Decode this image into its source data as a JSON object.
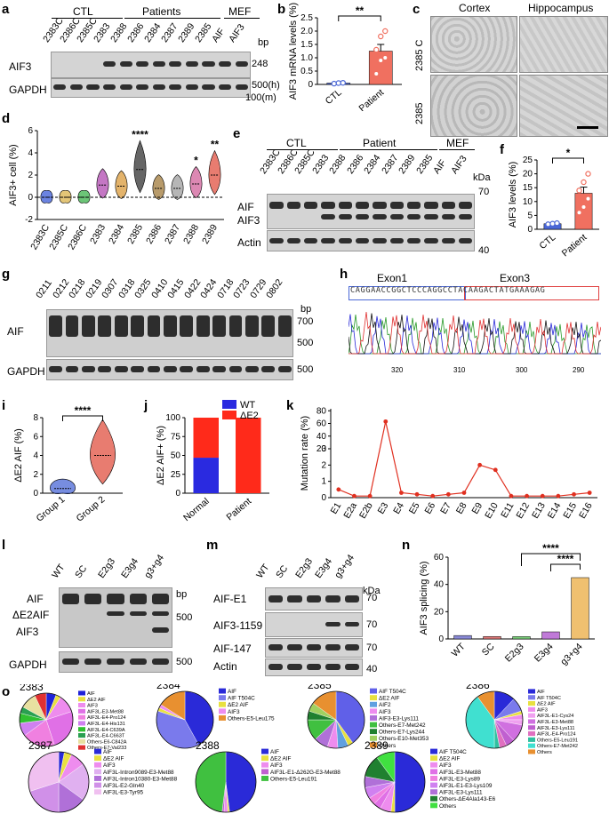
{
  "panels": {
    "a": "a",
    "b": "b",
    "c": "c",
    "d": "d",
    "e": "e",
    "f": "f",
    "g": "g",
    "h": "h",
    "i": "i",
    "j": "j",
    "k": "k",
    "l": "l",
    "m": "m",
    "n": "n",
    "o": "o"
  },
  "a": {
    "group_ctl": "CTL",
    "group_patients": "Patients",
    "group_mef": "MEF",
    "lanes": [
      "2383C",
      "2386C",
      "2385C",
      "2383",
      "2388",
      "2386",
      "2384",
      "2387",
      "2389",
      "2385",
      "AIF",
      "AIF3"
    ],
    "rows": [
      "AIF3",
      "GAPDH"
    ],
    "bp": "bp",
    "m248": "248",
    "m500": "500(h)",
    "m100": "100(m)"
  },
  "e": {
    "group_ctl": "CTL",
    "group_patient": "Patient",
    "group_mef": "MEF",
    "lanes": [
      "2383C",
      "2386C",
      "2385C",
      "2383",
      "2388",
      "2386",
      "2384",
      "2387",
      "2389",
      "2385",
      "AIF",
      "AIF3"
    ],
    "rows": [
      "AIF",
      "AIF3",
      "Actin"
    ],
    "kda": "kDa",
    "m70": "70",
    "m40": "40"
  },
  "c": {
    "cortex": "Cortex",
    "hippo": "Hippocampus",
    "row1": "2385 C",
    "row2": "2385"
  },
  "g": {
    "lanes": [
      "0211",
      "0212",
      "0218",
      "0219",
      "0307",
      "0318",
      "0325",
      "0410",
      "0415",
      "0422",
      "0424",
      "0718",
      "0723",
      "0729",
      "0802"
    ],
    "rows": [
      "AIF",
      "GAPDH"
    ],
    "bp": "bp",
    "m700": "700",
    "m500a": "500",
    "m500b": "500"
  },
  "h": {
    "exon1": "Exon1",
    "exon3": "Exon3",
    "seq": "CAGGAACCGGCTCCCAGGCCTACAAGACTATGAAAGAG",
    "ticks": [
      "320",
      "310",
      "300",
      "290"
    ]
  },
  "l": {
    "lanes": [
      "WT",
      "SC",
      "E2g3",
      "E3g4",
      "g3+g4"
    ],
    "rows": [
      "AIF",
      "ΔE2AIF",
      "AIF3",
      "GAPDH"
    ],
    "bp": "bp",
    "m500a": "500",
    "m500b": "500"
  },
  "m": {
    "lanes": [
      "WT",
      "SC",
      "E2g3",
      "E3g4",
      "g3+g4"
    ],
    "rows": [
      "AIF-E1",
      "AIF3-1159",
      "AIF-147",
      "Actin"
    ],
    "kda": "kDa",
    "m70a": "70",
    "m70b": "70",
    "m70c": "70",
    "m40": "40"
  },
  "chart_data": [
    {
      "panel": "b",
      "type": "bar",
      "ylabel": "AIF3 mRNA levels (%)",
      "categories": [
        "CTL",
        "Patient"
      ],
      "values": [
        0.05,
        1.25
      ],
      "sem": [
        0.02,
        0.25
      ],
      "colors": [
        "#4a67d6",
        "#f07060"
      ],
      "points": [
        [
          0.03,
          0.05,
          0.06
        ],
        [
          0.4,
          0.9,
          1.0,
          1.3,
          1.8,
          2.0
        ]
      ],
      "ylim": [
        0,
        2.5
      ],
      "yticks": [
        "0",
        "0.5",
        "1.0",
        "1.5",
        "2.0",
        "2.5"
      ],
      "sig": "**"
    },
    {
      "panel": "d",
      "type": "violin",
      "ylabel": "AIF3+ cell (%)",
      "categories": [
        "2383C",
        "2385C",
        "2386C",
        "2383",
        "2384",
        "2385",
        "2386",
        "2387",
        "2388",
        "2389"
      ],
      "medians": [
        0,
        0,
        0,
        1.1,
        1.0,
        2.5,
        0.8,
        0.8,
        1.2,
        2.0
      ],
      "colors": [
        "#3a5ad6",
        "#d9b24a",
        "#3bb24a",
        "#b04ab0",
        "#d99a3a",
        "#333333",
        "#a07a3a",
        "#9e9e9e",
        "#d0609a",
        "#e05040"
      ],
      "ylim": [
        -2,
        6
      ],
      "yticks": [
        "-2",
        "0",
        "2",
        "4",
        "6"
      ],
      "sig": {
        "2385": "****",
        "2388": "*",
        "2389": "**"
      }
    },
    {
      "panel": "f",
      "type": "bar",
      "ylabel": "AIF3 levels (%)",
      "categories": [
        "CTL",
        "Patient"
      ],
      "values": [
        2.0,
        13.0
      ],
      "sem": [
        0.3,
        2.2
      ],
      "colors": [
        "#4a67d6",
        "#f07060"
      ],
      "points": [
        [
          1.8,
          2.0,
          2.2
        ],
        [
          6,
          8,
          11,
          14,
          17,
          20
        ]
      ],
      "ylim": [
        0,
        25
      ],
      "yticks": [
        "0",
        "5",
        "10",
        "15",
        "20",
        "25"
      ],
      "sig": "*"
    },
    {
      "panel": "i",
      "type": "violin",
      "ylabel": "ΔE2 AIF (%)",
      "categories": [
        "Group 1",
        "Group 2"
      ],
      "medians": [
        0.5,
        4.0
      ],
      "colors": [
        "#4a67d6",
        "#e05040"
      ],
      "ylim": [
        0,
        8
      ],
      "yticks": [
        "0",
        "2",
        "4",
        "6",
        "8"
      ],
      "sig": "****"
    },
    {
      "panel": "j",
      "type": "stacked_bar",
      "ylabel": "ΔE2 AIF+ (%)",
      "categories": [
        "Normal",
        "Patient"
      ],
      "series": [
        {
          "name": "WT",
          "values": [
            47,
            0
          ],
          "color": "#2a2ae0"
        },
        {
          "name": "ΔE2",
          "values": [
            53,
            100
          ],
          "color": "#ff2a1a"
        }
      ],
      "ylim": [
        0,
        100
      ],
      "yticks": [
        "0",
        "25",
        "50",
        "75",
        "100"
      ]
    },
    {
      "panel": "k",
      "type": "line",
      "ylabel": "Mutation rate (%)",
      "categories": [
        "E1",
        "E2a",
        "E2b",
        "E3",
        "E4",
        "E5",
        "E6",
        "E7",
        "E8",
        "E9",
        "E10",
        "E11",
        "E12",
        "E13",
        "E14",
        "E15",
        "E16"
      ],
      "values": [
        0.5,
        0.1,
        0.1,
        63,
        0.3,
        0.2,
        0.1,
        0.2,
        0.3,
        2.0,
        1.7,
        0.1,
        0.1,
        0.1,
        0.1,
        0.2,
        0.3
      ],
      "ylim": [
        0,
        80
      ],
      "yticks": [
        "0",
        "1",
        "2",
        "3",
        "20",
        "40",
        "60",
        "80"
      ],
      "color": "#e03020"
    },
    {
      "panel": "n",
      "type": "bar",
      "ylabel": "AIF3 splicing (%)",
      "categories": [
        "WT",
        "SC",
        "E2g3",
        "E3g4",
        "g3+g4"
      ],
      "values": [
        2.5,
        1.8,
        1.7,
        5.2,
        45
      ],
      "colors": [
        "#8a8ad8",
        "#e07a7a",
        "#7ad07a",
        "#c07ad8",
        "#f0c070"
      ],
      "ylim": [
        0,
        60
      ],
      "yticks": [
        "0",
        "20",
        "40",
        "60"
      ],
      "sig": [
        "****",
        "****"
      ]
    },
    {
      "panel": "o",
      "type": "pie",
      "charts": [
        {
          "title": "2383",
          "labels": [
            "AIF",
            "ΔE2 AIF",
            "AIF3",
            "AIF3L-E3-Met88",
            "AIF3L-E4-Pro124",
            "AIF3L-E4-His131",
            "AIF3L-E4-C639A",
            "AIF3L-E4-C663T",
            "Others-E6-C842A",
            "Others-E7-Val233"
          ],
          "values": [
            6,
            3,
            11,
            25,
            20,
            8,
            6,
            4,
            10,
            7
          ],
          "colors": [
            "#1f22d8",
            "#e8e040",
            "#ee8cee",
            "#e070e6",
            "#f080e0",
            "#d080f0",
            "#30c030",
            "#2aa050",
            "#e8e0a0",
            "#e03030"
          ]
        },
        {
          "title": "2384",
          "labels": [
            "AIF",
            "AIF T504C",
            "ΔE2 AIF",
            "AIF3",
            "Others-E5-Leu175"
          ],
          "values": [
            42,
            38,
            2,
            2,
            16
          ],
          "colors": [
            "#2a2ad8",
            "#7a7aec",
            "#e8e040",
            "#ee8cee",
            "#e89030"
          ]
        },
        {
          "title": "2385",
          "labels": [
            "AIF T504C",
            "ΔE2 AIF",
            "AIF2",
            "AIF3",
            "AIF3-E3-Lys111",
            "Others-E7-Met242",
            "Others-E7-Lys244",
            "Others-E10-Met353",
            "Others"
          ],
          "values": [
            40,
            3,
            6,
            6,
            8,
            12,
            5,
            5,
            15
          ],
          "colors": [
            "#6060e8",
            "#e8e040",
            "#60a0e0",
            "#ee8cee",
            "#b070d8",
            "#40c040",
            "#208030",
            "#a0d060",
            "#e89030"
          ]
        },
        {
          "title": "2386",
          "labels": [
            "AIF",
            "AIF T504C",
            "ΔE2 AIF",
            "AIF3",
            "AIF3L-E1-Cys24",
            "AIF3L-E3-Met88",
            "AIF3L-E3-Lys111",
            "AIF3L-E4-Pro124",
            "Others-E5-Leu191",
            "Others-E7-Met242",
            "Others"
          ],
          "values": [
            12,
            8,
            2,
            3,
            3,
            10,
            5,
            4,
            3,
            40,
            10
          ],
          "colors": [
            "#2a2ad8",
            "#7a7aec",
            "#e8e040",
            "#ee8cee",
            "#f0a0f0",
            "#d070e0",
            "#c060d0",
            "#e070c0",
            "#30c0a0",
            "#40e0d0",
            "#e89030"
          ]
        },
        {
          "title": "2387",
          "labels": [
            "AIF",
            "ΔE2 AIF",
            "AIF3",
            "AIF3L-Intron9089-E3-Met88",
            "AIF3L-Intron10380-E3-Met88",
            "AIF3L-E2-Gln40",
            "AIF3L-E3-Tyr95"
          ],
          "values": [
            3,
            4,
            8,
            20,
            15,
            20,
            30
          ],
          "colors": [
            "#2a2ad8",
            "#e8e040",
            "#ee8cee",
            "#e0b0f0",
            "#b070d8",
            "#d090e8",
            "#f0c0f0"
          ]
        },
        {
          "title": "2388",
          "labels": [
            "AIF",
            "ΔE2 AIF",
            "AIF3",
            "AIF3L-E1-Δ262G-E3-Met88",
            "Others-E5-Leu191"
          ],
          "values": [
            48,
            1,
            2,
            1,
            48
          ],
          "colors": [
            "#2a2ad8",
            "#e8e040",
            "#ee8cee",
            "#c060d0",
            "#40c040"
          ]
        },
        {
          "title": "2389",
          "labels": [
            "AIF T504C",
            "ΔE2 AIF",
            "AIF3",
            "AIF3L-E3-Met88",
            "AIF3L-E3-Lys89",
            "AIF3L-E1-E3-Lys109",
            "AIF3L-E3-Lys111",
            "Others-ΔE4Ala143-E6",
            "Others"
          ],
          "values": [
            50,
            2,
            6,
            4,
            4,
            6,
            6,
            12,
            10
          ],
          "colors": [
            "#2a2ad8",
            "#e8e040",
            "#ee8cee",
            "#e070e6",
            "#f080e0",
            "#d080f0",
            "#b070d8",
            "#208030",
            "#40e040"
          ]
        }
      ]
    }
  ]
}
